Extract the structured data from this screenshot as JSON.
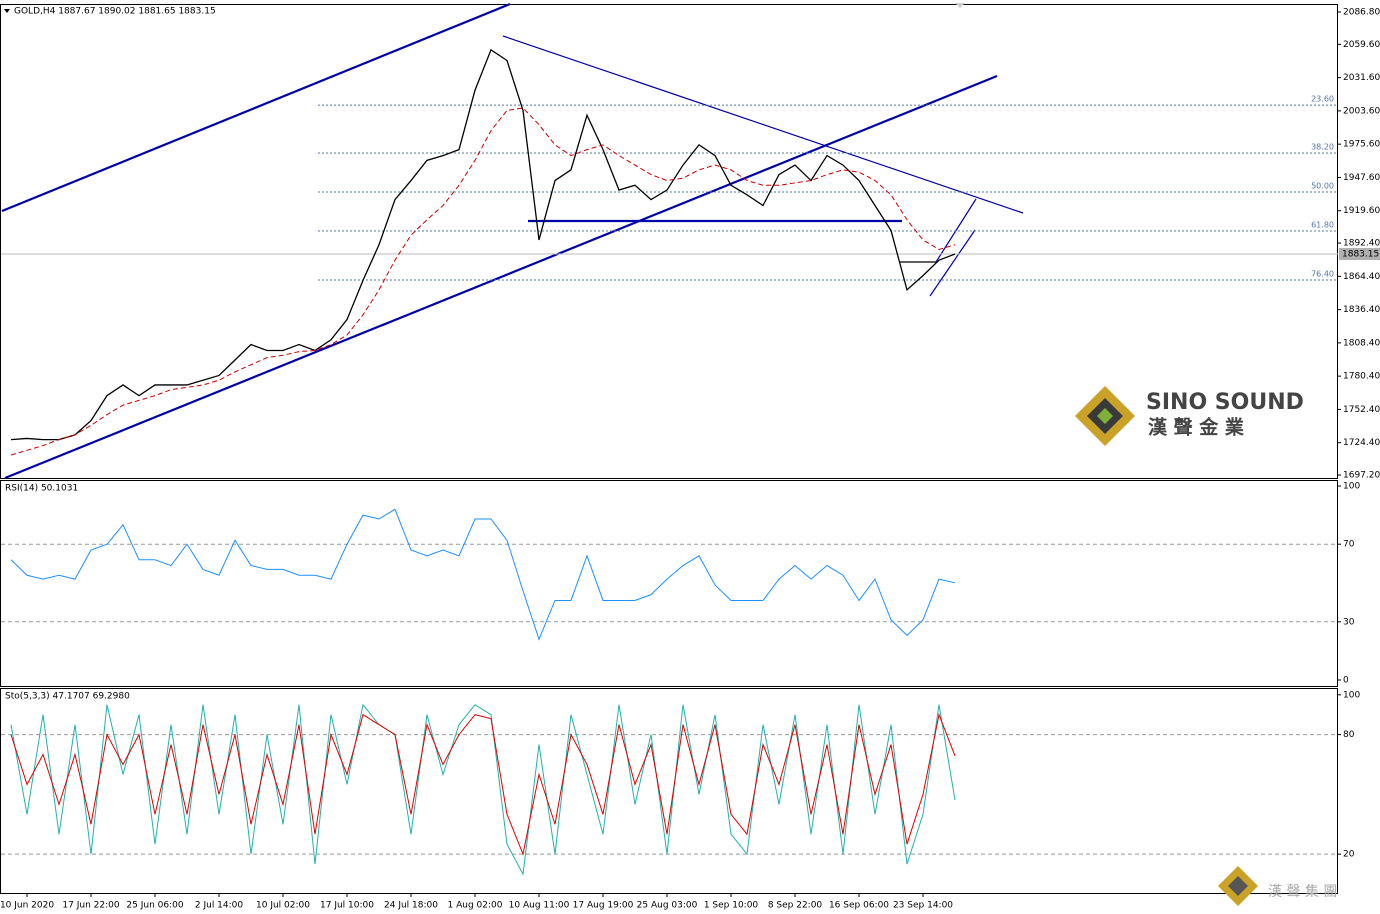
{
  "chart_data": [
    {
      "type": "line",
      "title": "GOLD,H4  1887.67 1890.02 1881.65 1883.15",
      "ylim": [
        1694.7,
        2092.7
      ],
      "yticks": [
        {
          "value": 2086.8,
          "label": "2086.80"
        },
        {
          "value": 2059.6,
          "label": "2059.60"
        },
        {
          "value": 2031.6,
          "label": "2031.60"
        },
        {
          "value": 2003.6,
          "label": "2003.60"
        },
        {
          "value": 1975.6,
          "label": "1975.60"
        },
        {
          "value": 1947.6,
          "label": "1947.60"
        },
        {
          "value": 1919.6,
          "label": "1919.60"
        },
        {
          "value": 1892.4,
          "label": "1892.40"
        },
        {
          "value": 1864.4,
          "label": "1864.40"
        },
        {
          "value": 1836.4,
          "label": "1836.40"
        },
        {
          "value": 1808.4,
          "label": "1808.40"
        },
        {
          "value": 1780.4,
          "label": "1780.40"
        },
        {
          "value": 1752.4,
          "label": "1752.40"
        },
        {
          "value": 1724.4,
          "label": "1724.40"
        },
        {
          "value": 1697.2,
          "label": "1697.20"
        }
      ],
      "last_price": 1883.15,
      "fib_levels": [
        {
          "value": 2008.5,
          "label": "23.60"
        },
        {
          "value": 1968.2,
          "label": "38.20"
        },
        {
          "value": 1935.3,
          "label": "50.00"
        },
        {
          "value": 1902.5,
          "label": "61.80"
        },
        {
          "value": 1861.3,
          "label": "76.40"
        }
      ],
      "series": [
        {
          "color": "#000000",
          "style": "solid",
          "values": [
            1727,
            1728,
            1727,
            1727,
            1731,
            1743,
            1764,
            1773,
            1764,
            1773,
            1773,
            1773,
            1777,
            1781,
            1794,
            1807,
            1802,
            1802,
            1807,
            1802,
            1811,
            1828,
            1861,
            1891,
            1929,
            1945,
            1962,
            1966,
            1971,
            2021,
            2055,
            2046,
            2004,
            1895,
            1945,
            1954,
            2000,
            1971,
            1937,
            1941,
            1929,
            1937,
            1958,
            1975,
            1966,
            1941,
            1933,
            1924,
            1950,
            1958,
            1945,
            1966,
            1958,
            1945,
            1924,
            1903,
            1853,
            1865,
            1878,
            1883.15
          ]
        },
        {
          "color": "#cc0000",
          "style": "dashed",
          "values": [
            1714,
            1718,
            1722,
            1727,
            1731,
            1739,
            1748,
            1756,
            1760,
            1764,
            1769,
            1771,
            1773,
            1777,
            1784,
            1790,
            1796,
            1798,
            1801,
            1802,
            1807,
            1815,
            1832,
            1853,
            1878,
            1899,
            1912,
            1924,
            1941,
            1962,
            1987,
            2004,
            2006,
            1992,
            1975,
            1966,
            1971,
            1975,
            1966,
            1958,
            1950,
            1945,
            1947,
            1954,
            1958,
            1954,
            1945,
            1941,
            1941,
            1943,
            1945,
            1950,
            1954,
            1952,
            1945,
            1933,
            1912,
            1895,
            1887,
            1891
          ]
        }
      ]
    },
    {
      "type": "line",
      "title": "RSI(14) 50.1031",
      "ylim": [
        -3.1,
        103.1
      ],
      "yticks": [
        100,
        70,
        30,
        0
      ],
      "levels": [
        70,
        30
      ],
      "series": [
        {
          "color": "#1e90ff",
          "style": "solid",
          "values": [
            62,
            54,
            52,
            54,
            52,
            67,
            70,
            80,
            62,
            62,
            59,
            70,
            57,
            54,
            72,
            59,
            57,
            57,
            54,
            54,
            52,
            70,
            85,
            83,
            88,
            67,
            64,
            67,
            64,
            83,
            83,
            72,
            46,
            21,
            41,
            41,
            64,
            41,
            41,
            41,
            44,
            52,
            59,
            64,
            49,
            41,
            41,
            41,
            52,
            59,
            52,
            59,
            54,
            41,
            52,
            31,
            23,
            31,
            52,
            50.1031
          ]
        }
      ]
    },
    {
      "type": "line",
      "title": "Sto(5,3,3) 47.1707 69.2980",
      "ylim": [
        0.5,
        103.4
      ],
      "yticks": [
        100,
        80,
        20
      ],
      "levels": [
        80,
        20
      ],
      "categories": [
        null,
        "10 Jun 2020",
        null,
        null,
        null,
        "17 Jun 22:00",
        null,
        null,
        null,
        "25 Jun 06:00",
        null,
        null,
        null,
        "2 Jul 14:00",
        null,
        null,
        null,
        "10 Jul 02:00",
        null,
        null,
        null,
        "17 Jul 10:00",
        null,
        null,
        null,
        "24 Jul 18:00",
        null,
        null,
        null,
        "1 Aug 02:00",
        null,
        null,
        null,
        "10 Aug 11:00",
        null,
        null,
        null,
        "17 Aug 19:00",
        null,
        null,
        null,
        "25 Aug 03:00",
        null,
        null,
        null,
        "1 Sep 10:00",
        null,
        null,
        null,
        "8 Sep 22:00",
        null,
        null,
        null,
        "16 Sep 06:00",
        null,
        null,
        null,
        "23 Sep 14:00",
        null,
        null
      ],
      "series": [
        {
          "color": "#20b2aa",
          "style": "solid",
          "values": [
            85,
            40,
            90,
            30,
            85,
            20,
            95,
            60,
            90,
            25,
            85,
            30,
            95,
            40,
            90,
            20,
            80,
            35,
            95,
            15,
            90,
            55,
            95,
            85,
            80,
            30,
            90,
            60,
            85,
            95,
            90,
            25,
            10,
            75,
            20,
            90,
            60,
            30,
            95,
            45,
            80,
            20,
            95,
            50,
            90,
            30,
            20,
            85,
            45,
            90,
            30,
            85,
            20,
            95,
            40,
            85,
            15,
            40,
            95,
            47.1707
          ]
        },
        {
          "color": "#dd0000",
          "style": "solid",
          "values": [
            80,
            55,
            70,
            45,
            70,
            35,
            80,
            65,
            80,
            40,
            75,
            40,
            85,
            50,
            80,
            35,
            70,
            45,
            85,
            30,
            80,
            60,
            90,
            85,
            80,
            40,
            85,
            65,
            80,
            90,
            88,
            40,
            20,
            60,
            35,
            80,
            65,
            40,
            85,
            55,
            75,
            30,
            85,
            55,
            85,
            40,
            30,
            75,
            55,
            85,
            40,
            75,
            30,
            85,
            50,
            75,
            25,
            50,
            90,
            69.298
          ]
        }
      ]
    }
  ],
  "watermarks": {
    "brand": "SINO SOUND",
    "brand_cn": "漢 聲 金 業",
    "corner": "漢 聲 集 團"
  }
}
